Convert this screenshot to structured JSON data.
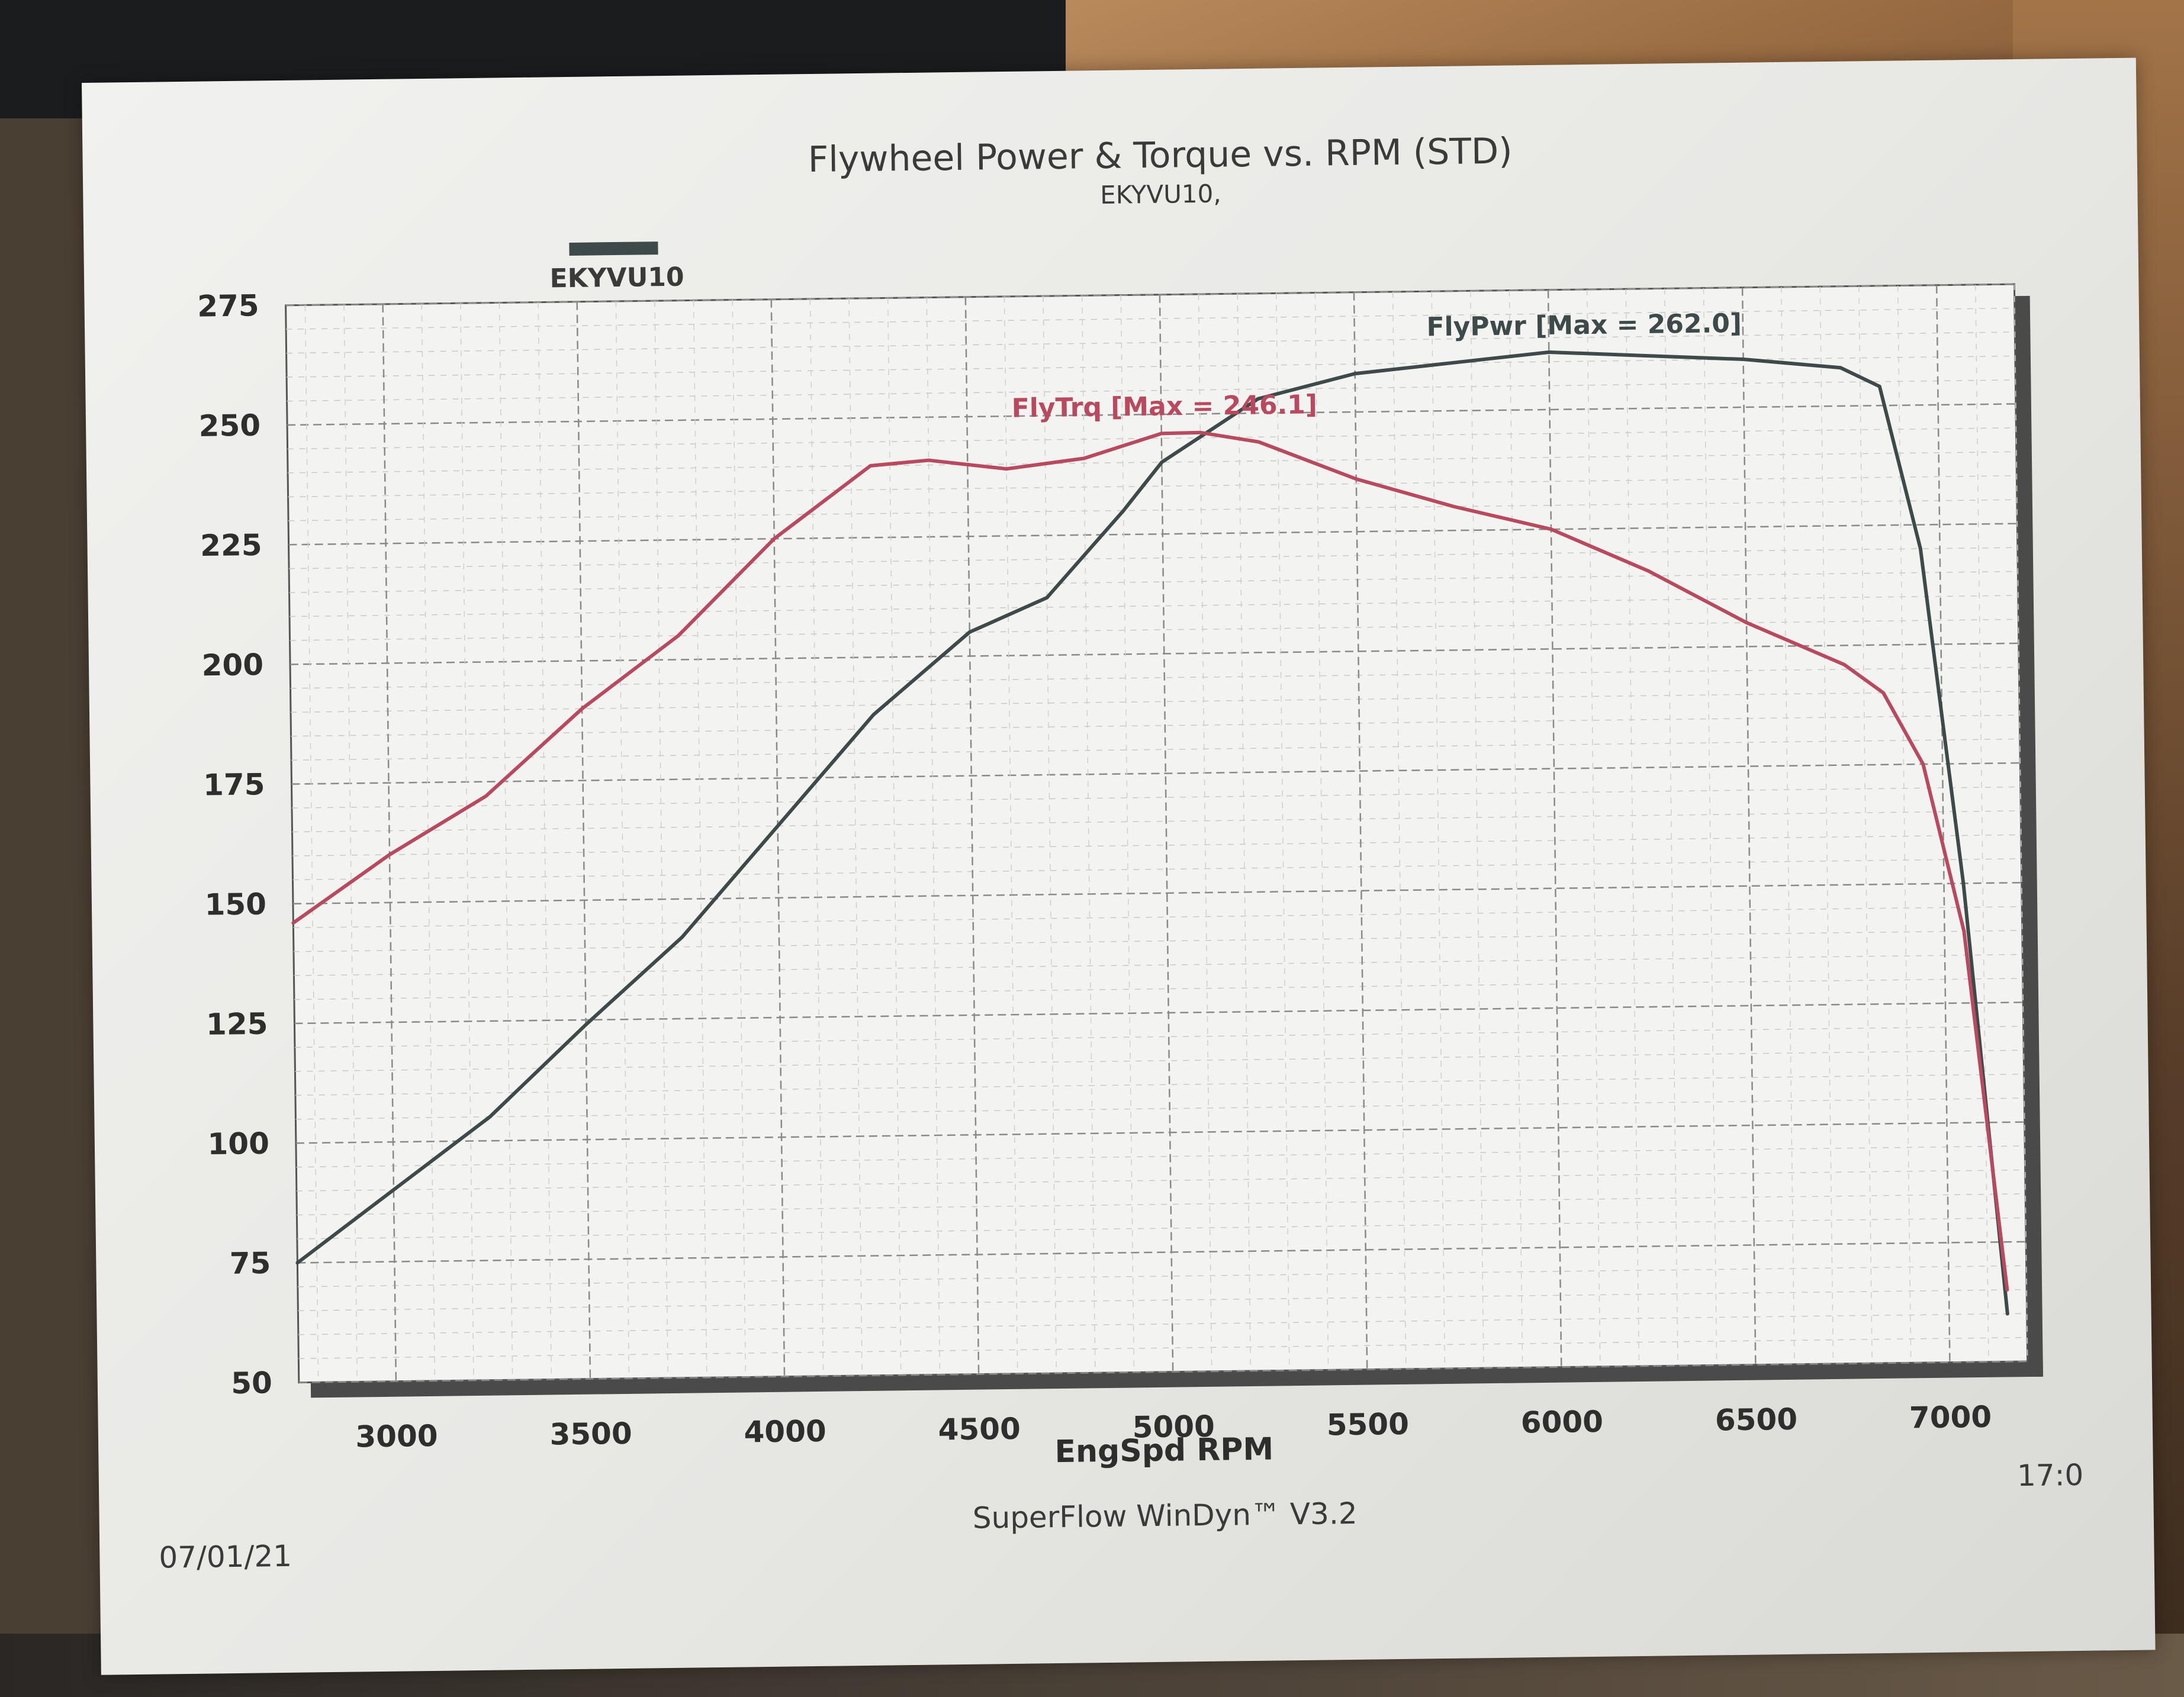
{
  "chart_data": {
    "type": "line",
    "title": "Flywheel Power & Torque vs. RPM (STD)",
    "subtitle": "EKYVU10,",
    "legend": {
      "label": "EKYVU10",
      "color": "#3e4a4a",
      "placement": "top-left"
    },
    "xlabel": "EngSpd RPM",
    "xlim": [
      2750,
      7200
    ],
    "ylim": [
      50,
      275
    ],
    "x_ticks": [
      3000,
      3500,
      4000,
      4500,
      5000,
      5500,
      6000,
      6500,
      7000
    ],
    "y_ticks": [
      50,
      75,
      100,
      125,
      150,
      175,
      200,
      225,
      250,
      275
    ],
    "grid": true,
    "series": [
      {
        "name": "FlyPwr",
        "annotation": "FlyPwr [Max = 262.0]",
        "color": "#3e4a4a",
        "points": [
          [
            2750,
            75
          ],
          [
            3000,
            90
          ],
          [
            3250,
            105
          ],
          [
            3500,
            124
          ],
          [
            3750,
            142
          ],
          [
            4000,
            165
          ],
          [
            4250,
            188
          ],
          [
            4500,
            205
          ],
          [
            4700,
            212
          ],
          [
            4900,
            230
          ],
          [
            5000,
            240
          ],
          [
            5250,
            253
          ],
          [
            5500,
            258
          ],
          [
            5750,
            260
          ],
          [
            6000,
            262
          ],
          [
            6250,
            261
          ],
          [
            6500,
            260
          ],
          [
            6750,
            258
          ],
          [
            6850,
            254
          ],
          [
            6950,
            220
          ],
          [
            7050,
            150
          ],
          [
            7150,
            60
          ]
        ]
      },
      {
        "name": "FlyTrq",
        "annotation": "FlyTrq [Max = 246.1]",
        "color": "#b8495e",
        "points": [
          [
            2750,
            146
          ],
          [
            3000,
            160
          ],
          [
            3250,
            172
          ],
          [
            3500,
            190
          ],
          [
            3750,
            205
          ],
          [
            4000,
            225
          ],
          [
            4250,
            240
          ],
          [
            4400,
            241
          ],
          [
            4600,
            239
          ],
          [
            4800,
            241
          ],
          [
            5000,
            246
          ],
          [
            5100,
            246.1
          ],
          [
            5250,
            244
          ],
          [
            5500,
            236
          ],
          [
            5750,
            230
          ],
          [
            6000,
            225
          ],
          [
            6250,
            216
          ],
          [
            6500,
            205
          ],
          [
            6750,
            196
          ],
          [
            6850,
            190
          ],
          [
            6950,
            175
          ],
          [
            7050,
            140
          ],
          [
            7150,
            65
          ]
        ]
      }
    ],
    "footer": {
      "date": "07/01/21",
      "software": "SuperFlow WinDyn™ V3.2",
      "time": "17:0"
    }
  }
}
